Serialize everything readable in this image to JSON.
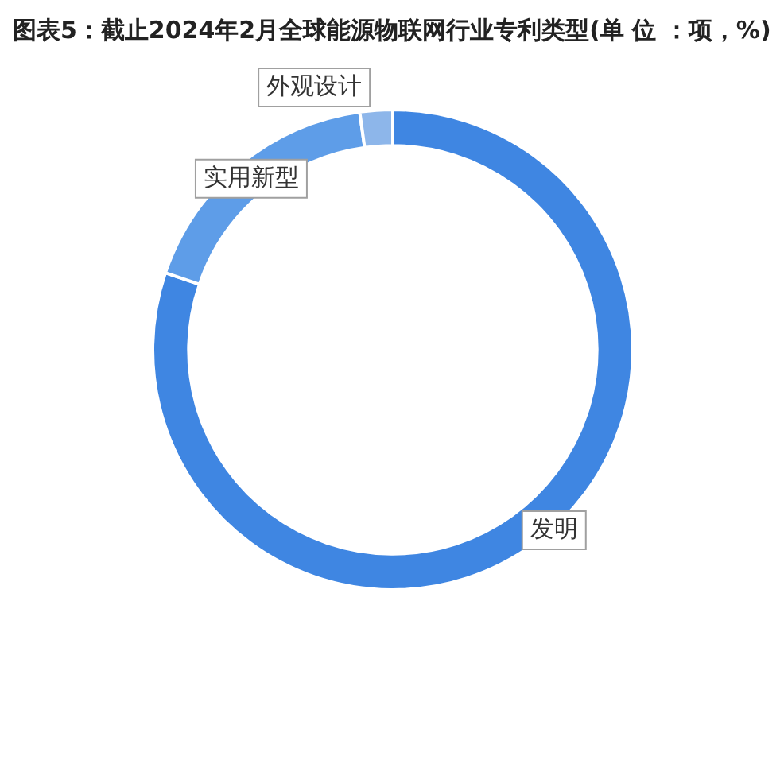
{
  "chart_data": {
    "type": "donut",
    "title": "图表5：截止2024年2月全球能源物联网行业专利类型(单 位 ：项，%)",
    "categories": [
      "发明",
      "实用新型",
      "外观设计"
    ],
    "values": [
      80.2,
      17.6,
      2.2
    ],
    "colors": [
      "#3f86e2",
      "#5e9de8",
      "#8db6ea"
    ],
    "legend": false
  }
}
